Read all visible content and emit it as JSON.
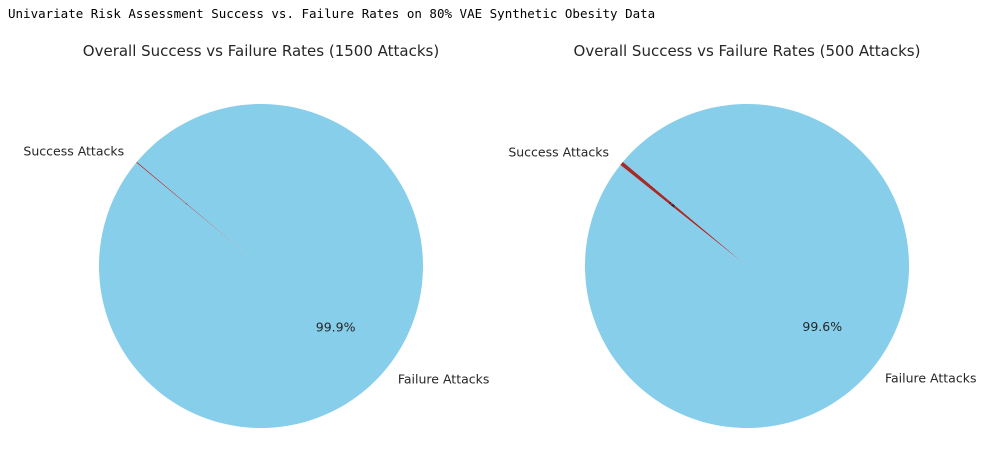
{
  "page": {
    "heading": "Univariate Risk Assessment Success vs. Failure Rates on 80% VAE Synthetic Obesity Data"
  },
  "colors": {
    "success": "#a52a2a",
    "failure": "#87ceeb"
  },
  "chart_data": [
    {
      "type": "pie",
      "title": "Overall Success vs Failure Rates (1500 Attacks)",
      "start_angle_deg": 140,
      "slices": [
        {
          "label": "Success Attacks",
          "value": 0.1,
          "pct_label": "0.1%",
          "color": "#a52a2a"
        },
        {
          "label": "Failure Attacks",
          "value": 99.9,
          "pct_label": "99.9%",
          "color": "#87ceeb"
        }
      ]
    },
    {
      "type": "pie",
      "title": "Overall Success vs Failure Rates (500 Attacks)",
      "start_angle_deg": 140,
      "slices": [
        {
          "label": "Success Attacks",
          "value": 0.4,
          "pct_label": "0.4%",
          "color": "#a52a2a"
        },
        {
          "label": "Failure Attacks",
          "value": 99.6,
          "pct_label": "99.6%",
          "color": "#87ceeb"
        }
      ]
    }
  ]
}
